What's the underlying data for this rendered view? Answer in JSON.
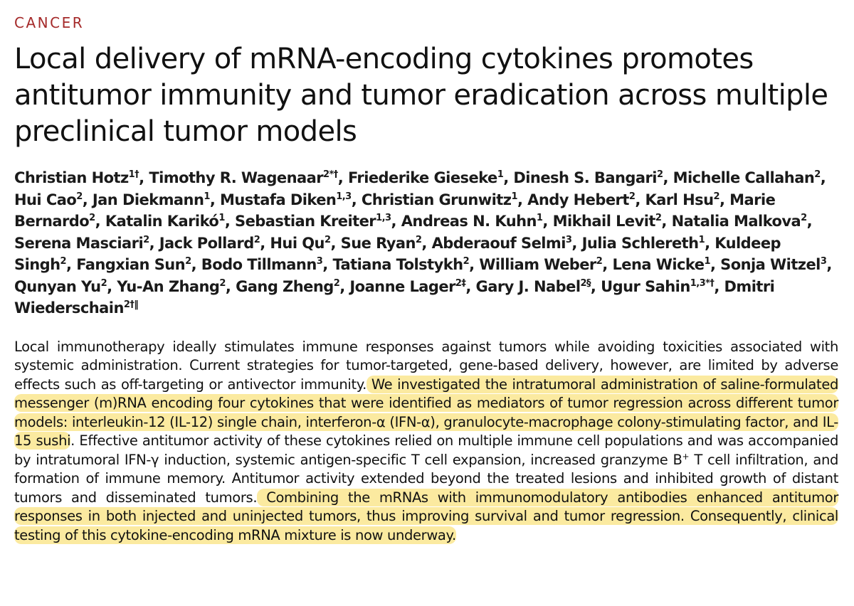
{
  "section": "CANCER",
  "title": "Local delivery of mRNA-encoding cytokines promotes antitumor immunity and tumor eradication across multiple preclinical tumor models",
  "authors": [
    {
      "name": "Christian Hotz",
      "aff": "1†"
    },
    {
      "name": "Timothy R. Wagenaar",
      "aff": "2*†"
    },
    {
      "name": "Friederike Gieseke",
      "aff": "1"
    },
    {
      "name": "Dinesh S. Bangari",
      "aff": "2"
    },
    {
      "name": "Michelle Callahan",
      "aff": "2"
    },
    {
      "name": "Hui Cao",
      "aff": "2"
    },
    {
      "name": "Jan Diekmann",
      "aff": "1"
    },
    {
      "name": "Mustafa Diken",
      "aff": "1,3"
    },
    {
      "name": "Christian Grunwitz",
      "aff": "1"
    },
    {
      "name": "Andy Hebert",
      "aff": "2"
    },
    {
      "name": "Karl Hsu",
      "aff": "2"
    },
    {
      "name": "Marie Bernardo",
      "aff": "2"
    },
    {
      "name": "Katalin Karikó",
      "aff": "1"
    },
    {
      "name": "Sebastian Kreiter",
      "aff": "1,3"
    },
    {
      "name": "Andreas N. Kuhn",
      "aff": "1"
    },
    {
      "name": "Mikhail Levit",
      "aff": "2"
    },
    {
      "name": "Natalia Malkova",
      "aff": "2"
    },
    {
      "name": "Serena Masciari",
      "aff": "2"
    },
    {
      "name": "Jack Pollard",
      "aff": "2"
    },
    {
      "name": "Hui Qu",
      "aff": "2"
    },
    {
      "name": "Sue Ryan",
      "aff": "2"
    },
    {
      "name": "Abderaouf Selmi",
      "aff": "3"
    },
    {
      "name": "Julia Schlereth",
      "aff": "1"
    },
    {
      "name": "Kuldeep Singh",
      "aff": "2"
    },
    {
      "name": "Fangxian Sun",
      "aff": "2"
    },
    {
      "name": "Bodo Tillmann",
      "aff": "3"
    },
    {
      "name": "Tatiana Tolstykh",
      "aff": "2"
    },
    {
      "name": "William Weber",
      "aff": "2"
    },
    {
      "name": "Lena Wicke",
      "aff": "1"
    },
    {
      "name": "Sonja Witzel",
      "aff": "3"
    },
    {
      "name": "Qunyan Yu",
      "aff": "2"
    },
    {
      "name": "Yu-An Zhang",
      "aff": "2"
    },
    {
      "name": "Gang Zheng",
      "aff": "2"
    },
    {
      "name": "Joanne Lager",
      "aff": "2‡"
    },
    {
      "name": "Gary J. Nabel",
      "aff": "2§"
    },
    {
      "name": "Ugur Sahin",
      "aff": "1,3*†"
    },
    {
      "name": "Dmitri Wiederschain",
      "aff": "2†‖"
    }
  ],
  "abstract": {
    "p1": "Local immunotherapy ideally stimulates immune responses against tumors while avoiding toxicities associated with systemic administration. Current strategies for tumor-targeted, gene-based delivery, however, are limited by adverse effects such as off-targeting or antivector immunity.",
    "h1": " We investigated the intratumoral administration of saline-formulated messenger (m)RNA encoding four cytokines that were identified as mediators of tumor re­gression across different tumor models: interleukin-12 (IL-12) single chain, interferon-α (IFN-α), granulocyte-macrophage colony-stimulating factor, and IL-15 sushi",
    "p2a": ". Effective antitumor activity of these cytokines relied on multiple immune cell populations and was accompanied by intratumoral IFN-γ induction, systemic antigen-specific T cell expansion, increased granzyme B",
    "sup": "+",
    "p2b": " T cell infiltration, and formation of immune memory. Antitumor activity extended beyond the treated lesions and inhibited growth of distant tumors and disseminated tumors.",
    "h2": " Combining the mRNAs with immunomodulatory antibodies enhanced antitumor responses in both injected and uninjected tumors, thus improving survival and tumor regression. Consequently, clinical testing of this cytokine-encoding mRNA mixture is now underway.",
    "highlight_color": "#fbeaa0"
  }
}
